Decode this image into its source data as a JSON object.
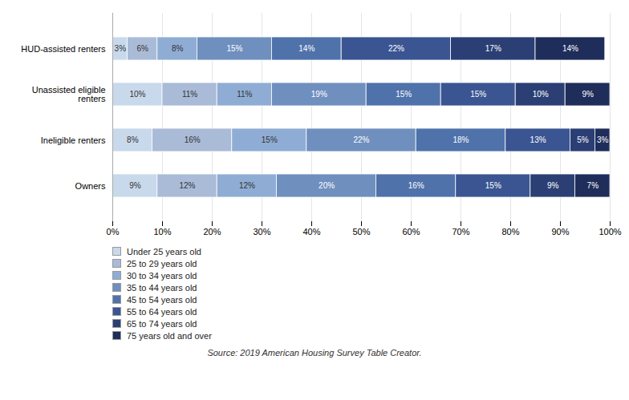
{
  "chart_data": {
    "type": "bar",
    "orientation": "horizontal",
    "stacked": true,
    "data_labels": true,
    "grid": true,
    "legend": "lower left",
    "caption": "Source: 2019 American Housing Survey Table Creator.",
    "categories": [
      "HUD-assisted renters",
      "Unassisted eligible\nrenters",
      "Ineligible renters",
      "Owners"
    ],
    "xlim": [
      0,
      100
    ],
    "xticks": [
      {
        "value": 0,
        "label": "0%"
      },
      {
        "value": 10,
        "label": "10%"
      },
      {
        "value": 20,
        "label": "20%"
      },
      {
        "value": 30,
        "label": "30%"
      },
      {
        "value": 40,
        "label": "40%"
      },
      {
        "value": 50,
        "label": "50%"
      },
      {
        "value": 60,
        "label": "60%"
      },
      {
        "value": 70,
        "label": "70%"
      },
      {
        "value": 80,
        "label": "80%"
      },
      {
        "value": 90,
        "label": "90%"
      },
      {
        "value": 100,
        "label": "100%"
      }
    ],
    "series": [
      {
        "name": "Under 25 years old",
        "color": "#c9d9ec",
        "values": [
          3,
          10,
          8,
          9
        ],
        "value_labels": [
          "3%",
          "10%",
          "8%",
          "9%"
        ]
      },
      {
        "name": "25 to 29 years old",
        "color": "#aabbd8",
        "values": [
          6,
          11,
          16,
          12
        ],
        "value_labels": [
          "6%",
          "11%",
          "16%",
          "12%"
        ]
      },
      {
        "name": "30 to 34 years old",
        "color": "#8fadd4",
        "values": [
          8,
          11,
          15,
          12
        ],
        "value_labels": [
          "8%",
          "11%",
          "15%",
          "12%"
        ]
      },
      {
        "name": "35 to 44 years old",
        "color": "#6f8fbf",
        "values": [
          15,
          19,
          22,
          20
        ],
        "value_labels": [
          "15%",
          "19%",
          "22%",
          "20%"
        ]
      },
      {
        "name": "45 to 54 years old",
        "color": "#4f72ab",
        "values": [
          14,
          15,
          18,
          16
        ],
        "value_labels": [
          "14%",
          "15%",
          "18%",
          "16%"
        ]
      },
      {
        "name": "55 to 64 years old",
        "color": "#3a5592",
        "values": [
          22,
          15,
          13,
          15
        ],
        "value_labels": [
          "22%",
          "15%",
          "13%",
          "15%"
        ]
      },
      {
        "name": "65 to 74 years old",
        "color": "#2b3f75",
        "values": [
          17,
          10,
          5,
          9
        ],
        "value_labels": [
          "17%",
          "10%",
          "5%",
          "9%"
        ]
      },
      {
        "name": "75 years old and over",
        "color": "#1e2d5a",
        "values": [
          14,
          9,
          3,
          7
        ],
        "value_labels": [
          "14%",
          "9%",
          "3%",
          "7%"
        ]
      }
    ]
  }
}
